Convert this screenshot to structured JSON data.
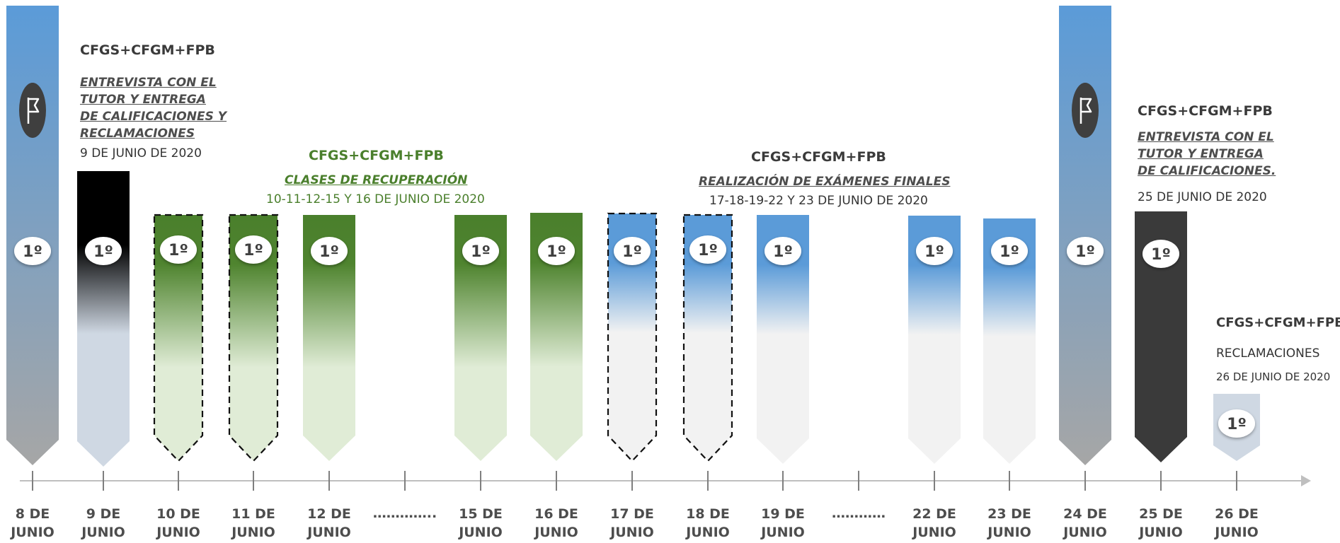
{
  "badge_text": "1º",
  "colors": {
    "blue": "#5b9bd8",
    "green": "#4a7f2c",
    "black": "#000000",
    "dark": "#3a3a3a",
    "axis": "#bfbfbf"
  },
  "icons": [
    "flag-icon"
  ],
  "groups": {
    "left": {
      "header": "CFGS+CFGM+FPB",
      "subtitle_lines": [
        "ENTREVISTA CON EL",
        "TUTOR Y ENTREGA",
        "DE CALIFICACIONES Y",
        "RECLAMACIONES"
      ],
      "date": "9 DE JUNIO DE 2020"
    },
    "green": {
      "header": "CFGS+CFGM+FPB",
      "subtitle": "CLASES DE RECUPERACIÓN",
      "date": "10-11-12-15 Y 16 DE JUNIO DE 2020"
    },
    "blue": {
      "header": "CFGS+CFGM+FPB",
      "subtitle": "REALIZACIÓN DE EXÁMENES FINALES",
      "date": "17-18-19-22 Y 23 DE JUNIO DE 2020"
    },
    "right": {
      "header": "CFGS+CFGM+FPB",
      "subtitle_lines": [
        "ENTREVISTA CON EL",
        "TUTOR Y ENTREGA",
        "DE CALIFICACIONES."
      ],
      "date": "25 DE JUNIO DE 2020"
    },
    "claims": {
      "header": "CFGS+CFGM+FPB",
      "subtitle": "RECLAMACIONES",
      "date": "26 DE JUNIO DE 2020"
    }
  },
  "days": [
    {
      "day": "8 DE",
      "month": "JUNIO",
      "style": "blue_flag"
    },
    {
      "day": "9 DE",
      "month": "JUNIO",
      "style": "black"
    },
    {
      "day": "10 DE",
      "month": "JUNIO",
      "style": "green_dashed"
    },
    {
      "day": "11 DE",
      "month": "JUNIO",
      "style": "green_dashed"
    },
    {
      "day": "12 DE",
      "month": "JUNIO",
      "style": "green"
    },
    {
      "day": "…………..",
      "month": "",
      "style": "gap"
    },
    {
      "day": "15 DE",
      "month": "JUNIO",
      "style": "green"
    },
    {
      "day": "16 DE",
      "month": "JUNIO",
      "style": "green"
    },
    {
      "day": "17 DE",
      "month": "JUNIO",
      "style": "blue_dashed"
    },
    {
      "day": "18 DE",
      "month": "JUNIO",
      "style": "blue_dashed"
    },
    {
      "day": "19 DE",
      "month": "JUNIO",
      "style": "blue"
    },
    {
      "day": "…………",
      "month": "",
      "style": "gap"
    },
    {
      "day": "22 DE",
      "month": "JUNIO",
      "style": "blue"
    },
    {
      "day": "23 DE",
      "month": "JUNIO",
      "style": "blue"
    },
    {
      "day": "24 DE",
      "month": "JUNIO",
      "style": "blue_flag"
    },
    {
      "day": "25 DE",
      "month": "JUNIO",
      "style": "dark"
    },
    {
      "day": "26 DE",
      "month": "JUNIO",
      "style": "grey_small"
    }
  ]
}
